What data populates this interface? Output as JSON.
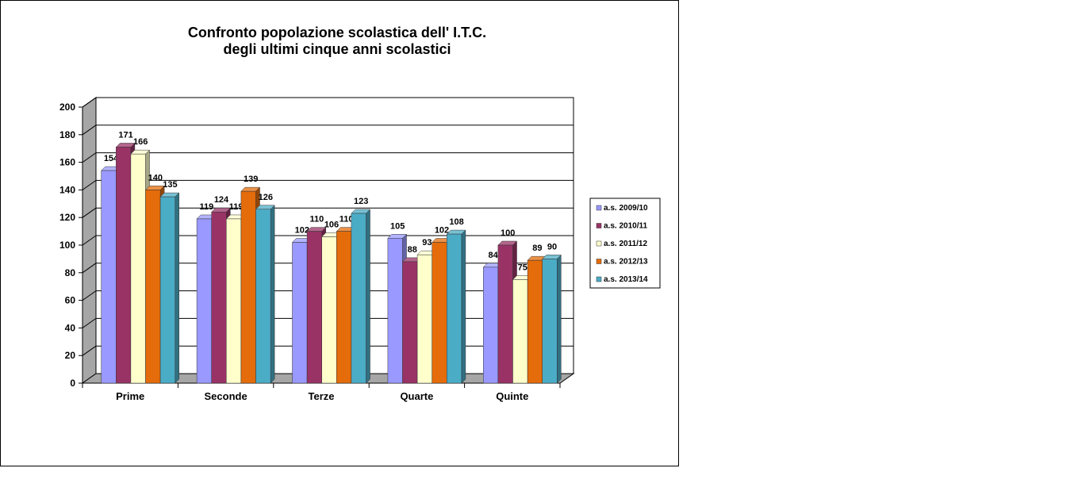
{
  "chart_data": {
    "type": "bar",
    "title": [
      "Confronto popolazione scolastica dell' I.T.C.",
      "degli ultimi cinque anni scolastici"
    ],
    "xlabel": "",
    "ylabel": "",
    "categories": [
      "Prime",
      "Seconde",
      "Terze",
      "Quarte",
      "Quinte"
    ],
    "ylim": [
      0,
      200
    ],
    "yticks": [
      0,
      20,
      40,
      60,
      80,
      100,
      120,
      140,
      160,
      180,
      200
    ],
    "grid": true,
    "legend_position": "right",
    "series": [
      {
        "name": "a.s. 2009/10",
        "color": "#9999ff",
        "values": [
          154,
          119,
          102,
          105,
          84
        ]
      },
      {
        "name": "a.s. 2010/11",
        "color": "#993366",
        "values": [
          171,
          124,
          110,
          88,
          100
        ]
      },
      {
        "name": "a.s. 2011/12",
        "color": "#ffffcc",
        "values": [
          166,
          119,
          106,
          93,
          75
        ]
      },
      {
        "name": "a.s. 2012/13",
        "color": "#e46c0a",
        "values": [
          140,
          139,
          110,
          102,
          89
        ]
      },
      {
        "name": "a.s. 2013/14",
        "color": "#4bacc6",
        "values": [
          135,
          126,
          123,
          108,
          90
        ]
      }
    ]
  }
}
